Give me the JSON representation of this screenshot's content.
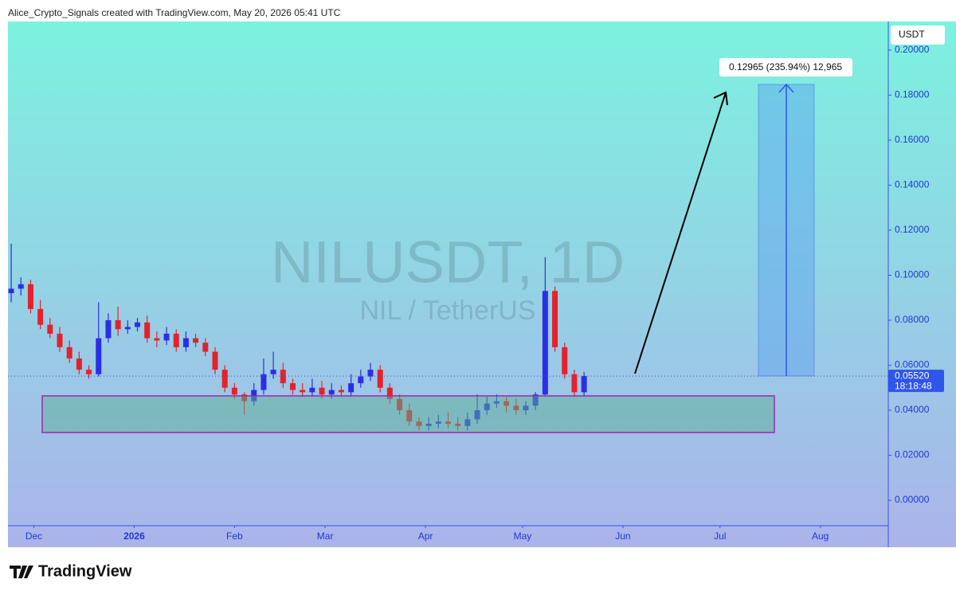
{
  "header": {
    "attribution": "Alice_Crypto_Signals created with TradingView.com, May 20, 2026 05:41 UTC"
  },
  "chart_data": {
    "type": "candlestick",
    "watermark_symbol": "NILUSDT, 1D",
    "watermark_description": "NIL / TetherUS",
    "currency": "USDT",
    "up_color": "#2b2fe3",
    "down_color": "#e3222b",
    "x": [
      1,
      4,
      7,
      10,
      13,
      16,
      19,
      22,
      25,
      28,
      31,
      34,
      37,
      40,
      43,
      46,
      49,
      52,
      55,
      58,
      61,
      64,
      67,
      70,
      73,
      76,
      79,
      82,
      85,
      88,
      91,
      94,
      97,
      100,
      103,
      106,
      109,
      112,
      115,
      118,
      121,
      124,
      127,
      130,
      133,
      136,
      139,
      142,
      145,
      148,
      151,
      154,
      157,
      160,
      163,
      166,
      169,
      172,
      175,
      178
    ],
    "open": [
      0.092,
      0.094,
      0.096,
      0.085,
      0.078,
      0.074,
      0.068,
      0.063,
      0.058,
      0.056,
      0.072,
      0.08,
      0.076,
      0.077,
      0.079,
      0.072,
      0.071,
      0.074,
      0.068,
      0.072,
      0.07,
      0.066,
      0.058,
      0.05,
      0.047,
      0.044,
      0.049,
      0.056,
      0.058,
      0.052,
      0.049,
      0.048,
      0.05,
      0.047,
      0.049,
      0.048,
      0.052,
      0.055,
      0.058,
      0.05,
      0.045,
      0.04,
      0.035,
      0.033,
      0.034,
      0.035,
      0.034,
      0.033,
      0.036,
      0.04,
      0.043,
      0.044,
      0.042,
      0.04,
      0.042,
      0.047,
      0.093,
      0.068,
      0.056,
      0.048
    ],
    "high": [
      0.114,
      0.099,
      0.098,
      0.089,
      0.081,
      0.077,
      0.071,
      0.066,
      0.06,
      0.088,
      0.083,
      0.086,
      0.08,
      0.081,
      0.082,
      0.075,
      0.077,
      0.076,
      0.075,
      0.074,
      0.072,
      0.068,
      0.06,
      0.052,
      0.048,
      0.052,
      0.063,
      0.066,
      0.061,
      0.054,
      0.052,
      0.054,
      0.053,
      0.052,
      0.051,
      0.056,
      0.058,
      0.061,
      0.06,
      0.052,
      0.047,
      0.043,
      0.037,
      0.037,
      0.038,
      0.039,
      0.037,
      0.039,
      0.047,
      0.046,
      0.047,
      0.046,
      0.045,
      0.044,
      0.048,
      0.108,
      0.095,
      0.07,
      0.058,
      0.057
    ],
    "low": [
      0.088,
      0.091,
      0.083,
      0.076,
      0.072,
      0.066,
      0.061,
      0.056,
      0.054,
      0.055,
      0.07,
      0.073,
      0.074,
      0.075,
      0.07,
      0.068,
      0.069,
      0.066,
      0.066,
      0.068,
      0.064,
      0.056,
      0.048,
      0.045,
      0.038,
      0.042,
      0.047,
      0.054,
      0.05,
      0.047,
      0.046,
      0.046,
      0.045,
      0.045,
      0.046,
      0.046,
      0.05,
      0.053,
      0.048,
      0.043,
      0.038,
      0.033,
      0.031,
      0.031,
      0.032,
      0.032,
      0.031,
      0.031,
      0.034,
      0.038,
      0.041,
      0.039,
      0.038,
      0.038,
      0.04,
      0.046,
      0.066,
      0.054,
      0.046,
      0.046
    ],
    "close": [
      0.094,
      0.096,
      0.085,
      0.078,
      0.074,
      0.068,
      0.063,
      0.058,
      0.056,
      0.072,
      0.08,
      0.076,
      0.077,
      0.079,
      0.072,
      0.071,
      0.074,
      0.068,
      0.072,
      0.07,
      0.066,
      0.058,
      0.05,
      0.047,
      0.044,
      0.049,
      0.056,
      0.058,
      0.052,
      0.049,
      0.048,
      0.05,
      0.047,
      0.049,
      0.048,
      0.052,
      0.055,
      0.058,
      0.05,
      0.045,
      0.04,
      0.035,
      0.033,
      0.034,
      0.035,
      0.034,
      0.033,
      0.036,
      0.04,
      0.043,
      0.044,
      0.042,
      0.04,
      0.042,
      0.047,
      0.093,
      0.068,
      0.056,
      0.048,
      0.0552
    ],
    "xlim": [
      0,
      272
    ],
    "xticks": [
      {
        "value": 8,
        "label": "Dec"
      },
      {
        "value": 39,
        "label": "2026"
      },
      {
        "value": 70,
        "label": "Feb"
      },
      {
        "value": 98,
        "label": "Mar"
      },
      {
        "value": 129,
        "label": "Apr"
      },
      {
        "value": 159,
        "label": "May"
      },
      {
        "value": 190,
        "label": "Jun"
      },
      {
        "value": 220,
        "label": "Jul"
      },
      {
        "value": 251,
        "label": "Aug"
      }
    ],
    "ylim": [
      -0.0113,
      0.2127
    ],
    "yticks": [
      {
        "value": 0,
        "label": "0.00000"
      },
      {
        "value": 0.02,
        "label": "0.02000"
      },
      {
        "value": 0.04,
        "label": "0.04000"
      },
      {
        "value": 0.06,
        "label": "0.06000"
      },
      {
        "value": 0.08,
        "label": "0.08000"
      },
      {
        "value": 0.1,
        "label": "0.10000"
      },
      {
        "value": 0.12,
        "label": "0.12000"
      },
      {
        "value": 0.14,
        "label": "0.14000"
      },
      {
        "value": 0.16,
        "label": "0.16000"
      },
      {
        "value": 0.18,
        "label": "0.18000"
      },
      {
        "value": 0.2,
        "label": "0.20000"
      }
    ],
    "last_price": {
      "value": 0.0552,
      "label": "0.05520"
    },
    "countdown": "18:18:48",
    "measure_label": "0.12965 (235.94%) 12,965"
  },
  "footer": {
    "brand": "TradingView"
  }
}
